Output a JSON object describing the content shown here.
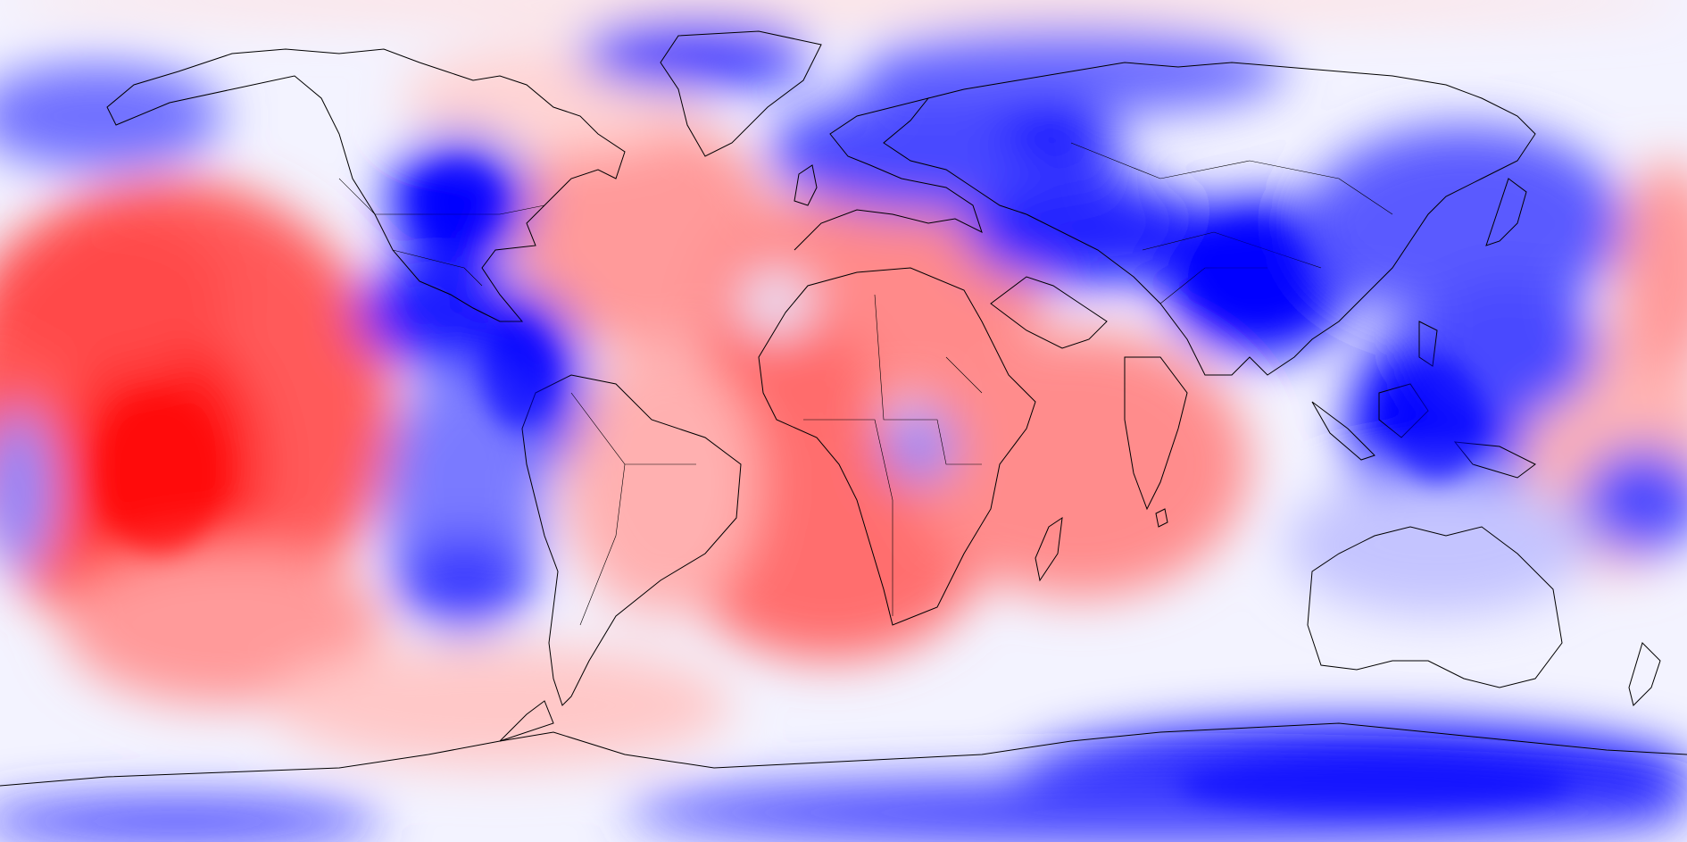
{
  "map": {
    "projection": "equirectangular",
    "colormap": {
      "negative": "#0000ff",
      "zero": "#ffffff",
      "positive": "#ff0000",
      "levels": 10
    },
    "coastline_color": "#000000",
    "anomalies": [
      {
        "region": "north-pacific-west",
        "sign": "negative",
        "strength": 0.55
      },
      {
        "region": "north-america-west",
        "sign": "negative",
        "strength": 1.0
      },
      {
        "region": "central-america-east-pacific",
        "sign": "negative",
        "strength": 0.95
      },
      {
        "region": "south-america-west",
        "sign": "negative",
        "strength": 0.95
      },
      {
        "region": "southeast-pacific",
        "sign": "negative",
        "strength": 0.8
      },
      {
        "region": "greenland-arctic",
        "sign": "negative",
        "strength": 0.85
      },
      {
        "region": "scandinavia-russia",
        "sign": "negative",
        "strength": 0.9
      },
      {
        "region": "central-asia",
        "sign": "negative",
        "strength": 0.95
      },
      {
        "region": "south-china-indochina",
        "sign": "negative",
        "strength": 1.0
      },
      {
        "region": "maritime-continent",
        "sign": "negative",
        "strength": 1.0
      },
      {
        "region": "australia",
        "sign": "negative",
        "strength": 0.35
      },
      {
        "region": "east-antarctica",
        "sign": "negative",
        "strength": 1.0
      },
      {
        "region": "central-pacific",
        "sign": "positive",
        "strength": 1.0
      },
      {
        "region": "north-atlantic",
        "sign": "positive",
        "strength": 0.55
      },
      {
        "region": "sahara-west-africa",
        "sign": "positive",
        "strength": 0.6
      },
      {
        "region": "southern-africa-atlantic",
        "sign": "positive",
        "strength": 0.75
      },
      {
        "region": "indian-ocean",
        "sign": "positive",
        "strength": 0.6
      },
      {
        "region": "south-pacific-east",
        "sign": "positive",
        "strength": 0.5
      },
      {
        "region": "west-antarctica",
        "sign": "positive",
        "strength": 0.35
      }
    ]
  }
}
